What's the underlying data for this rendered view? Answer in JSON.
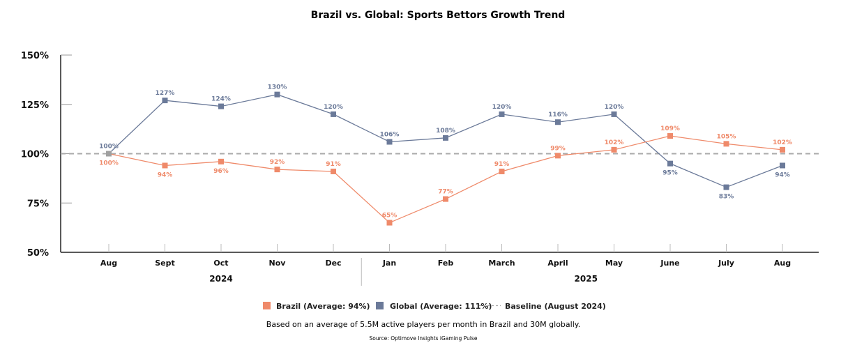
{
  "chart_data": {
    "type": "line",
    "title": "Brazil vs. Global: Sports Bettors Growth Trend",
    "xlabel": "",
    "ylabel": "",
    "ylim": [
      50,
      150
    ],
    "yticks": [
      50,
      75,
      100,
      125,
      150
    ],
    "ytick_labels": [
      "50%",
      "75%",
      "100%",
      "125%",
      "150%"
    ],
    "categories": [
      "Aug",
      "Sept",
      "Oct",
      "Nov",
      "Dec",
      "Jan",
      "Feb",
      "March",
      "April",
      "May",
      "June",
      "July",
      "Aug"
    ],
    "year_groups": [
      {
        "label": "2024",
        "start": 0,
        "end": 4
      },
      {
        "label": "2025",
        "start": 5,
        "end": 12
      }
    ],
    "series": [
      {
        "name": "Global",
        "legend": "Global (Average: 111%)",
        "color": "#6b7a99",
        "values": [
          100,
          127,
          124,
          130,
          120,
          106,
          108,
          120,
          116,
          120,
          95,
          83,
          94
        ],
        "label_pos": [
          "above",
          "above",
          "above",
          "above",
          "above",
          "above",
          "above",
          "above",
          "above",
          "above",
          "below",
          "below",
          "below"
        ]
      },
      {
        "name": "Brazil",
        "legend": "Brazil (Average: 94%)",
        "color": "#ef8a6a",
        "values": [
          100,
          94,
          96,
          92,
          91,
          65,
          77,
          91,
          99,
          102,
          109,
          105,
          102
        ],
        "label_pos": [
          "below",
          "below",
          "below",
          "above",
          "above",
          "above",
          "above",
          "above",
          "above",
          "above",
          "above",
          "above",
          "above"
        ]
      }
    ],
    "baseline": {
      "value": 100,
      "legend": "Baseline (August 2024)",
      "color": "#aaaaaa"
    },
    "first_point_color": "#a0a0a0",
    "value_suffix": "%",
    "grid": false,
    "legend_position": "bottom"
  },
  "footer": {
    "note": "Based on an average of 5.5M active players per month in Brazil and 30M globally.",
    "source": "Source: Optimove Insights iGaming Pulse"
  }
}
